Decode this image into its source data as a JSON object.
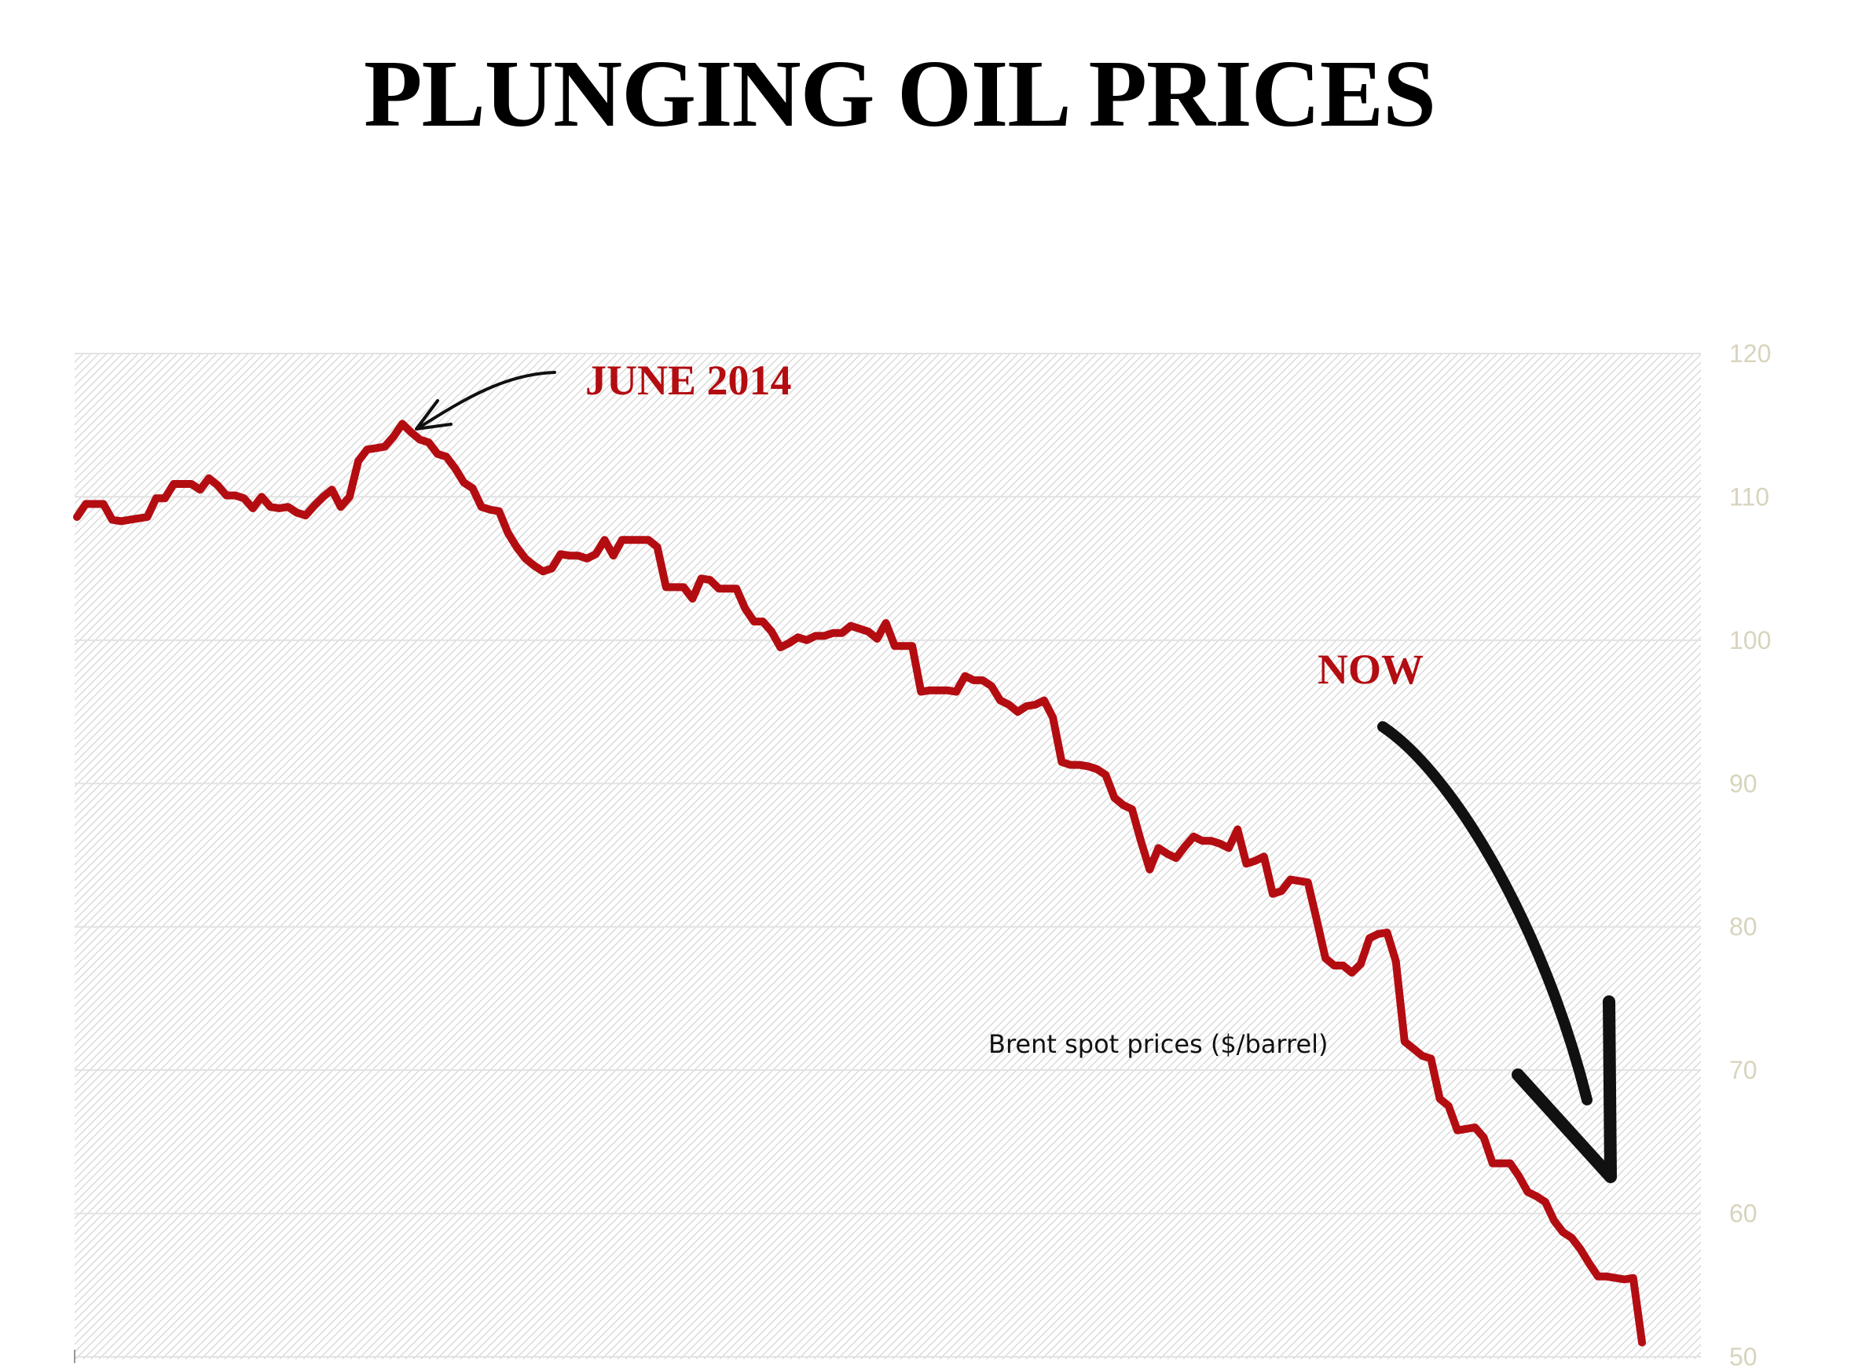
{
  "chart_data": {
    "type": "line",
    "title": "PLUNGING OIL PRICES",
    "series_label": "Brent spot prices ($/barrel)",
    "annotations": [
      {
        "id": "peak",
        "text": "JUNE 2014"
      },
      {
        "id": "now",
        "text": "NOW"
      }
    ],
    "y_axis": {
      "position": "right",
      "ylim": [
        50,
        120
      ],
      "ticks": [
        120,
        110,
        100,
        90,
        80,
        70,
        60,
        50
      ]
    },
    "grid": true,
    "colors": {
      "line": "#b30d12",
      "tick_label": "#d8d4bd",
      "arrow": "#111111"
    },
    "series": [
      {
        "name": "Brent spot prices ($/barrel)",
        "values": [
          108.6,
          109.5,
          109.5,
          109.5,
          108.4,
          108.3,
          108.4,
          108.5,
          108.6,
          109.9,
          109.9,
          110.9,
          110.9,
          110.9,
          110.5,
          111.3,
          110.8,
          110.1,
          110.1,
          109.9,
          109.2,
          110.0,
          109.3,
          109.2,
          109.3,
          108.9,
          108.7,
          109.4,
          110.0,
          110.5,
          109.3,
          110.0,
          112.5,
          113.3,
          113.4,
          113.5,
          114.2,
          115.1,
          114.5,
          114.0,
          113.8,
          113.0,
          112.8,
          112.0,
          111.0,
          110.6,
          109.3,
          109.1,
          109.0,
          107.5,
          106.5,
          105.7,
          105.2,
          104.8,
          105.0,
          106.0,
          105.9,
          105.9,
          105.7,
          106.0,
          107.0,
          105.9,
          107.0,
          107.0,
          107.0,
          107.0,
          106.5,
          103.7,
          103.7,
          103.7,
          102.9,
          104.3,
          104.2,
          103.6,
          103.6,
          103.6,
          102.2,
          101.3,
          101.3,
          100.6,
          99.5,
          99.8,
          100.2,
          100.0,
          100.3,
          100.3,
          100.5,
          100.5,
          101.0,
          100.8,
          100.6,
          100.1,
          101.2,
          99.6,
          99.6,
          99.6,
          96.4,
          96.5,
          96.5,
          96.5,
          96.4,
          97.5,
          97.2,
          97.2,
          96.8,
          95.8,
          95.5,
          95.0,
          95.4,
          95.5,
          95.8,
          94.6,
          91.5,
          91.3,
          91.3,
          91.2,
          91.0,
          90.6,
          89.0,
          88.5,
          88.2,
          86.0,
          84.0,
          85.5,
          85.1,
          84.8,
          85.6,
          86.3,
          86.0,
          86.0,
          85.8,
          85.5,
          86.8,
          84.4,
          84.6,
          84.9,
          82.3,
          82.5,
          83.3,
          83.2,
          83.1,
          80.5,
          77.8,
          77.3,
          77.3,
          76.8,
          77.4,
          79.2,
          79.5,
          79.6,
          77.6,
          72.0,
          71.5,
          71.0,
          70.8,
          68.0,
          67.5,
          65.8,
          65.9,
          66.0,
          65.3,
          63.5,
          63.5,
          63.5,
          62.6,
          61.5,
          61.2,
          60.8,
          59.5,
          58.7,
          58.3,
          57.5,
          56.5,
          55.6,
          55.6,
          55.5,
          55.4,
          55.5,
          51.0
        ]
      }
    ]
  }
}
